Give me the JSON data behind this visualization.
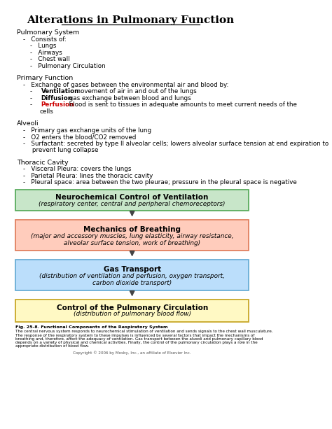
{
  "title": "Alterations in Pulmonary Function",
  "bg_color": "#ffffff",
  "text_color": "#000000",
  "boxes": [
    {
      "title": "Neurochemical Control of Ventilation",
      "subtitle": "(respiratory center, central and peripheral chemoreceptors)",
      "bg_color": "#c8e6c9",
      "border_color": "#5aac5e"
    },
    {
      "title": "Mechanics of Breathing",
      "subtitle": "(major and accessory muscles, lung elasticity, airway resistance,\nalveolar surface tension, work of breathing)",
      "bg_color": "#ffccbc",
      "border_color": "#e08060"
    },
    {
      "title": "Gas Transport",
      "subtitle": "(distribution of ventilation and perfusion, oxygen transport,\ncarbon dioxide transport)",
      "bg_color": "#bbdefb",
      "border_color": "#6aaed6"
    },
    {
      "title": "Control of the Pulmonary Circulation",
      "subtitle": "(distribution of pulmonary blood flow)",
      "bg_color": "#fff9c4",
      "border_color": "#c8a828"
    }
  ],
  "caption_title": "Fig. 25-8. Functional Components of the Respiratory System",
  "caption_lines": [
    "The central nervous system responds to neurochemical stimulation of ventilation and sends signals to the chest wall musculature.",
    "The response of the respiratory system to these impulses is influenced by several factors that impact the mechanisms of",
    "breathing and, therefore, affect the adequacy of ventilation. Gas transport between the alveoli and pulmonary capillary blood",
    "depends on a variety of physical and chemical activities. Finally, the control of the pulmonary circulation plays a role in the",
    "appropriate distribution of blood flow."
  ],
  "copyright": "Copyright © 2006 by Mosby, Inc., an affiliate of Elsevier Inc."
}
